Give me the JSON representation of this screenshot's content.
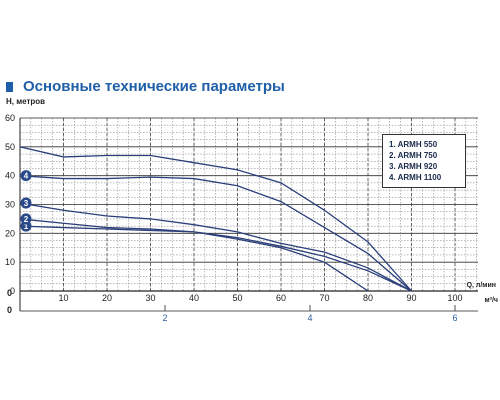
{
  "title": "Основные технические параметры",
  "chart_data": {
    "type": "line",
    "ylabel": "Н, метров",
    "xlabel": "Q, л/мин",
    "x2label": "м³/ч",
    "ylim": [
      0,
      60
    ],
    "xlim": [
      0,
      110
    ],
    "yticks": [
      "0",
      "10",
      "20",
      "30",
      "40",
      "50",
      "60"
    ],
    "xticks": [
      "0",
      "10",
      "20",
      "30",
      "40",
      "50",
      "60",
      "70",
      "80",
      "90",
      "100"
    ],
    "x2ticks": [
      "0",
      "2",
      "4",
      "6"
    ],
    "grid": true,
    "legend_position": "top-right",
    "series": [
      {
        "name": "1.  ARMH 550",
        "marker": "1",
        "x": [
          0,
          10,
          20,
          30,
          40,
          50,
          60,
          70,
          75,
          80
        ],
        "y": [
          22.5,
          22,
          21.5,
          21,
          20.5,
          18,
          15,
          10,
          5,
          0
        ]
      },
      {
        "name": "2.  ARMH 750",
        "marker": "2",
        "x": [
          0,
          10,
          20,
          30,
          40,
          50,
          60,
          70,
          80,
          90
        ],
        "y": [
          25,
          23.5,
          22,
          21.5,
          20.5,
          18.5,
          15.5,
          12,
          7,
          0
        ]
      },
      {
        "name": "3.  ARMH 920",
        "marker": "3",
        "x": [
          0,
          10,
          20,
          30,
          40,
          50,
          60,
          70,
          80,
          90
        ],
        "y": [
          30.5,
          28,
          26,
          25,
          23,
          20.5,
          16.5,
          13.5,
          8,
          0
        ]
      },
      {
        "name": "4.  ARMH 1100",
        "marker": "4",
        "x": [
          0,
          10,
          20,
          30,
          40,
          50,
          60,
          70,
          80,
          90
        ],
        "y": [
          40,
          39,
          39,
          39.5,
          39,
          36.5,
          31,
          22,
          13,
          0
        ]
      },
      {
        "name": "",
        "marker": "",
        "x": [
          0,
          10,
          20,
          30,
          40,
          50,
          60,
          70,
          80,
          90
        ],
        "y": [
          50,
          46.5,
          47,
          47,
          44.5,
          42,
          37.5,
          28,
          17,
          0
        ]
      }
    ]
  }
}
